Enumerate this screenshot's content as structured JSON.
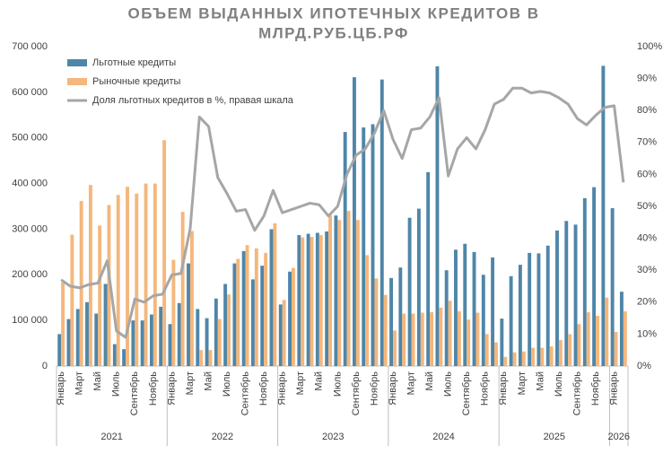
{
  "chart_data": {
    "type": "bar_line",
    "title": [
      "ОБЪЕМ ВЫДАННЫХ ИПОТЕЧНЫХ КРЕДИТОВ В",
      "МЛРД.РУБ.ЦБ.РФ"
    ],
    "categories": [
      "Январь",
      null,
      "Март",
      null,
      "Май",
      null,
      "Июль",
      null,
      "Сентябрь",
      null,
      "Ноябрь",
      null,
      "Январь",
      null,
      "Март",
      null,
      "Май",
      null,
      "Июль",
      null,
      "Сентябрь",
      null,
      "Ноябрь",
      null,
      "Январь",
      null,
      "Март",
      null,
      "Май",
      null,
      "Июль",
      null,
      "Сентябрь",
      null,
      "Ноябрь",
      null,
      "Январь",
      null,
      "Март",
      null,
      "Май",
      null,
      "Июль",
      null,
      "Сентябрь",
      null,
      "Ноябрь",
      null,
      "Январь",
      null,
      "Март",
      null,
      "Май",
      null,
      "Июль",
      null,
      "Сентябрь",
      null,
      "Ноябрь",
      null,
      "Январь",
      null
    ],
    "year_groups": [
      "2021",
      "2022",
      "2023",
      "2024",
      "2025",
      "2026"
    ],
    "series": [
      {
        "name": "Льготные кредиты",
        "type": "bar",
        "color": "#4f86a8",
        "values": [
          70000,
          103000,
          125000,
          140000,
          115000,
          180000,
          48000,
          37000,
          100000,
          100000,
          113000,
          130000,
          92000,
          138000,
          225000,
          125000,
          105000,
          148000,
          180000,
          225000,
          252000,
          190000,
          220000,
          300000,
          135000,
          207000,
          287000,
          290000,
          292000,
          295000,
          330000,
          513000,
          633000,
          523000,
          530000,
          628000,
          193000,
          216000,
          325000,
          345000,
          425000,
          657000,
          210000,
          255000,
          268000,
          250000,
          200000,
          238000,
          104000,
          197000,
          222000,
          248000,
          247000,
          264000,
          297000,
          318000,
          310000,
          368000,
          392000,
          658000,
          346000,
          163000
        ]
      },
      {
        "name": "Рыночные кредиты",
        "type": "bar",
        "color": "#f4b77c",
        "values": [
          183000,
          288000,
          362000,
          397000,
          308000,
          353000,
          375000,
          393000,
          378000,
          400000,
          400000,
          495000,
          233000,
          338000,
          296000,
          35000,
          35000,
          103000,
          157000,
          235000,
          265000,
          258000,
          248000,
          313000,
          145000,
          215000,
          282000,
          283000,
          287000,
          330000,
          320000,
          340000,
          320000,
          243000,
          192000,
          156000,
          78000,
          115000,
          115000,
          117000,
          118000,
          128000,
          143000,
          120000,
          102000,
          117000,
          70000,
          52000,
          20000,
          30000,
          32000,
          40000,
          40000,
          43000,
          57000,
          70000,
          92000,
          118000,
          110000,
          150000,
          75000,
          120000
        ]
      },
      {
        "name": "Доля льготных кредитов в %, правая шкала",
        "type": "line",
        "axis": "y2",
        "color": "#a6a6a6",
        "values": [
          27,
          25,
          24.5,
          25.5,
          26,
          33,
          11,
          9,
          21,
          20,
          22,
          22.5,
          28.5,
          29,
          43,
          78,
          75,
          59,
          54,
          48.5,
          49,
          42.5,
          47,
          55,
          48,
          49,
          50,
          51,
          50.5,
          47,
          50,
          60,
          66,
          68,
          73,
          80,
          71,
          65,
          74,
          74.5,
          78,
          84,
          59.5,
          68,
          71.5,
          68,
          74,
          82,
          83.5,
          87,
          87,
          85.5,
          86,
          85.5,
          84,
          82,
          77.5,
          75.5,
          78.5,
          81,
          81.5,
          57.5
        ]
      }
    ],
    "ylim": [
      0,
      700000
    ],
    "yticks": [
      {
        "value": 0,
        "label": "0"
      },
      {
        "value": 100000,
        "label": "100 000"
      },
      {
        "value": 200000,
        "label": "200 000"
      },
      {
        "value": 300000,
        "label": "300 000"
      },
      {
        "value": 400000,
        "label": "400 000"
      },
      {
        "value": 500000,
        "label": "500 000"
      },
      {
        "value": 600000,
        "label": "600 000"
      },
      {
        "value": 700000,
        "label": "700 000"
      }
    ],
    "y2lim": [
      0,
      100
    ],
    "y2ticks": [
      {
        "value": 0,
        "label": "0%"
      },
      {
        "value": 10,
        "label": "10%"
      },
      {
        "value": 20,
        "label": "20%"
      },
      {
        "value": 30,
        "label": "30%"
      },
      {
        "value": 40,
        "label": "40%"
      },
      {
        "value": 50,
        "label": "50%"
      },
      {
        "value": 60,
        "label": "60%"
      },
      {
        "value": 70,
        "label": "70%"
      },
      {
        "value": 80,
        "label": "80%"
      },
      {
        "value": 90,
        "label": "90%"
      },
      {
        "value": 100,
        "label": "100%"
      }
    ],
    "legend": "top-left"
  }
}
